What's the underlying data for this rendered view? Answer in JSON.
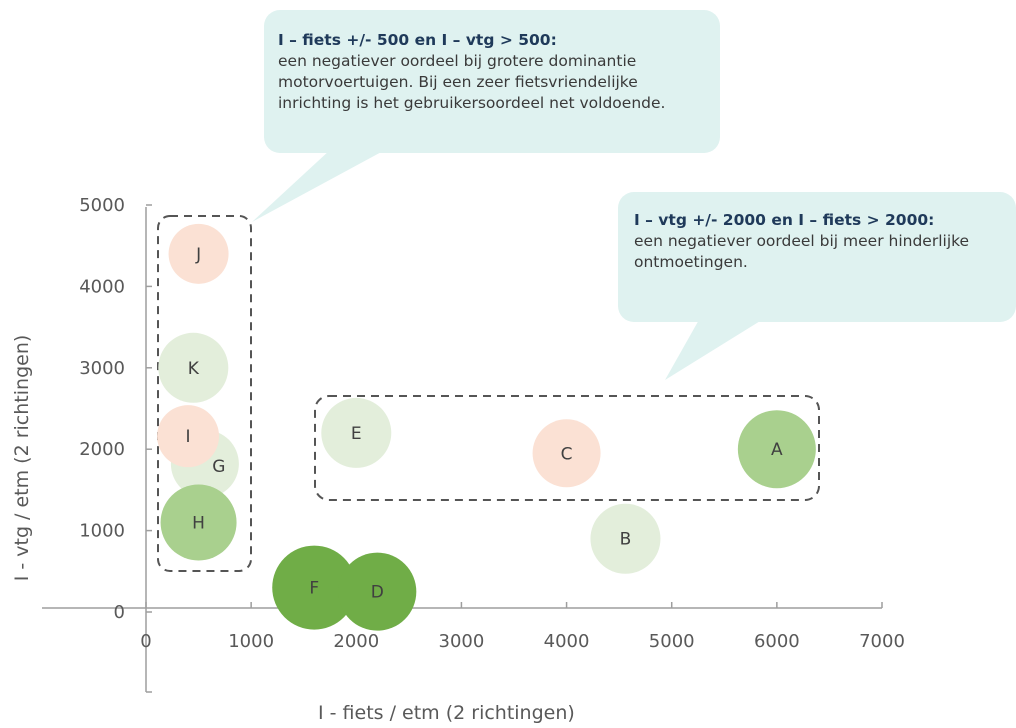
{
  "chart_data": {
    "type": "bubble",
    "xlabel": "I - fiets / etm (2 richtingen)",
    "ylabel": "I - vtg / etm (2 richtingen)",
    "xlim": [
      0,
      7000
    ],
    "ylim": [
      0,
      5000
    ],
    "x_ticks": [
      0,
      1000,
      2000,
      3000,
      4000,
      5000,
      6000,
      7000
    ],
    "y_ticks": [
      0,
      1000,
      2000,
      3000,
      4000,
      5000
    ],
    "grid": false,
    "points": [
      {
        "label": "J",
        "x": 500,
        "y": 4400,
        "color": "#fbe1d4"
      },
      {
        "label": "K",
        "x": 450,
        "y": 3000,
        "color": "#e3eedb"
      },
      {
        "label": "G",
        "x": 560,
        "y": 1820,
        "color": "#e3eedb"
      },
      {
        "label": "I",
        "x": 400,
        "y": 2160,
        "color": "#fbe1d4"
      },
      {
        "label": "H",
        "x": 500,
        "y": 1100,
        "color": "#a9d08e"
      },
      {
        "label": "E",
        "x": 2000,
        "y": 2200,
        "color": "#e3eedb"
      },
      {
        "label": "C",
        "x": 4000,
        "y": 1950,
        "color": "#fbe1d4"
      },
      {
        "label": "A",
        "x": 6000,
        "y": 2000,
        "color": "#a9d08e"
      },
      {
        "label": "B",
        "x": 4560,
        "y": 900,
        "color": "#e3eedb"
      },
      {
        "label": "F",
        "x": 1600,
        "y": 300,
        "color": "#70ad47"
      },
      {
        "label": "D",
        "x": 2200,
        "y": 250,
        "color": "#70ad47"
      }
    ],
    "annotations": [
      {
        "title": "I – fiets +/- 500 en I – vtg > 500:",
        "lines": [
          "een negatiever oordeel bij grotere dominantie",
          "motorvoertuigen. Bij een zeer fietsvriendelijke",
          "inrichting is het gebruikersoordeel net voldoende."
        ]
      },
      {
        "title": "I – vtg +/- 2000 en I – fiets > 2000:",
        "lines": [
          "een negatiever oordeel bij meer hinderlijke",
          "ontmoetingen."
        ]
      }
    ],
    "colors": {
      "callout_bg": "#dff2f0",
      "axis": "#9e9e9e",
      "tick_text": "#595959",
      "group_border": "#555555"
    }
  }
}
